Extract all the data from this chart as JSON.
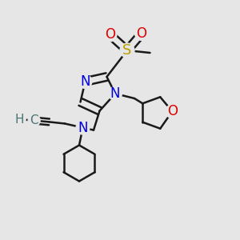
{
  "bg_color": "#e6e6e6",
  "bond_color": "#1a1a1a",
  "bond_width": 1.8,
  "fig_width": 3.0,
  "fig_height": 3.0,
  "dpi": 100,
  "colors": {
    "N": "#0000dd",
    "S": "#b8a000",
    "O": "#dd0000",
    "C_teal": "#4a7575",
    "H_teal": "#4a7575"
  }
}
